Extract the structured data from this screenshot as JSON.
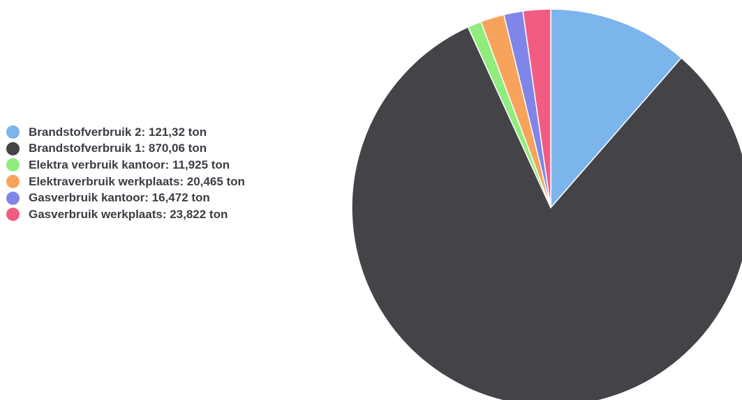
{
  "chart_data": {
    "type": "pie",
    "series": [
      {
        "name": "Brandstofverbruik 2",
        "value": 121.32,
        "label": "Brandstofverbruik 2: 121,32 ton",
        "color": "#7cb5ec"
      },
      {
        "name": "Brandstofverbruik 1",
        "value": 870.06,
        "label": "Brandstofverbruik 1: 870,06 ton",
        "color": "#434348"
      },
      {
        "name": "Elektra verbruik kantoor",
        "value": 11.925,
        "label": "Elektra verbruik kantoor: 11,925 ton",
        "color": "#90ed7d"
      },
      {
        "name": "Elektraverbruik werkplaats",
        "value": 20.465,
        "label": "Elektraverbruik werkplaats: 20,465 ton",
        "color": "#f7a35c"
      },
      {
        "name": "Gasverbruik kantoor",
        "value": 16.472,
        "label": "Gasverbruik kantoor: 16,472 ton",
        "color": "#8085e9"
      },
      {
        "name": "Gasverbruik werkplaats",
        "value": 23.822,
        "label": "Gasverbruik werkplaats: 23,822 ton",
        "color": "#f15c80"
      }
    ],
    "unit": "ton",
    "legend_position": "left",
    "start_angle": "top",
    "direction": "clockwise"
  }
}
